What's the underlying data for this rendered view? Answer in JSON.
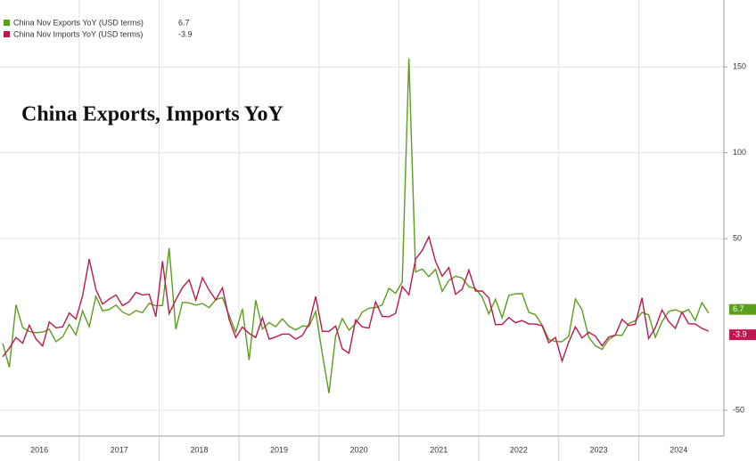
{
  "chart_data": {
    "type": "line",
    "title": "China Exports, Imports YoY",
    "categories": [
      null,
      null,
      null,
      null,
      null,
      "2016",
      null,
      null,
      null,
      null,
      null,
      null,
      null,
      null,
      null,
      null,
      null,
      "2017",
      null,
      null,
      null,
      null,
      null,
      null,
      null,
      null,
      null,
      null,
      null,
      "2018",
      null,
      null,
      null,
      null,
      null,
      null,
      null,
      null,
      null,
      null,
      null,
      "2019",
      null,
      null,
      null,
      null,
      null,
      null,
      null,
      null,
      null,
      null,
      null,
      "2020",
      null,
      null,
      null,
      null,
      null,
      null,
      null,
      null,
      null,
      null,
      null,
      "2021",
      null,
      null,
      null,
      null,
      null,
      null,
      null,
      null,
      null,
      null,
      null,
      "2022",
      null,
      null,
      null,
      null,
      null,
      null,
      null,
      null,
      null,
      null,
      null,
      "2023",
      null,
      null,
      null,
      null,
      null,
      null,
      null,
      null,
      null,
      null,
      null,
      "2024",
      null,
      null,
      null,
      null,
      null
    ],
    "series": [
      {
        "name": "China Nov Exports YoY (USD terms)",
        "color": "#5c9e1e",
        "values": [
          -11,
          -25,
          11.5,
          -1.8,
          -4.1,
          -4.8,
          -4.4,
          -2.8,
          -10,
          -7.3,
          0.1,
          -6.1,
          7.9,
          -1.3,
          16.4,
          8,
          8.7,
          11.3,
          7.2,
          5.5,
          8.1,
          6.9,
          12.3,
          10.9,
          11.1,
          44.5,
          -2.7,
          12.9,
          12.6,
          11.3,
          12.2,
          9.8,
          14.5,
          15.6,
          5.4,
          -4.4,
          9.1,
          -20.7,
          14.2,
          -2.7,
          1.1,
          -1.3,
          3.3,
          -1,
          -3.2,
          -0.9,
          -1.1,
          7.6,
          -17.2,
          -40,
          -6.6,
          3.5,
          -3.3,
          0.5,
          7.2,
          9.5,
          9.9,
          11.4,
          21.1,
          18.1,
          24.9,
          154.9,
          30.6,
          32.3,
          27.9,
          32.2,
          19.3,
          25.6,
          28.1,
          27.1,
          22,
          20.9,
          16,
          6.2,
          14.7,
          3.9,
          16.9,
          17.9,
          18,
          7.1,
          5.7,
          -0.3,
          -8.7,
          -9.9,
          -10,
          -6.8,
          14.8,
          8.5,
          -7.5,
          -12.4,
          -14.5,
          -8.8,
          -6.2,
          -6.4,
          0.5,
          2.3,
          7.1,
          5.6,
          -7.5,
          1.5,
          7.6,
          8.6,
          7,
          8.7,
          2.4,
          12.7,
          6.7
        ]
      },
      {
        "name": "China Nov Imports YoY (USD terms)",
        "color": "#c0174d",
        "values": [
          -18.8,
          -13.8,
          -7.6,
          -10.9,
          -0.4,
          -8.4,
          -12.5,
          1.5,
          -1.9,
          -1.4,
          6.7,
          3.1,
          16.7,
          38.1,
          20.3,
          11.9,
          14.8,
          17.2,
          11,
          13.3,
          18.7,
          17.2,
          17.7,
          4.5,
          36.9,
          6.3,
          14.4,
          21.5,
          26,
          14.1,
          27.3,
          20,
          14.3,
          21.4,
          3,
          -7.6,
          -1.5,
          -5.2,
          -7.6,
          4,
          -8.5,
          -7.3,
          -5.6,
          -5.6,
          -8.5,
          -6.4,
          0.3,
          16.3,
          -4,
          -4,
          -0.9,
          -14.2,
          -16.7,
          2.7,
          -1.4,
          -2.1,
          13.2,
          4.7,
          4.5,
          6.5,
          22.2,
          17.3,
          38.1,
          43.1,
          51.1,
          36.7,
          28.1,
          33.1,
          17.6,
          20.6,
          31.7,
          19.5,
          19.5,
          15.5,
          -0.1,
          0,
          4.1,
          1,
          2.3,
          0.3,
          0.3,
          -0.7,
          -10.6,
          -7.5,
          -21.3,
          -10.2,
          -1.4,
          -7.9,
          -4.5,
          -6.8,
          -12.4,
          -7.3,
          -6.2,
          3,
          -0.6,
          0.2,
          15.5,
          -8.2,
          -1.9,
          8.4,
          1.8,
          -2.3,
          7.2,
          0.5,
          0.3,
          -2.3,
          -3.9
        ]
      }
    ],
    "ylim": [
      -65,
      189
    ],
    "yticks": [
      -50,
      50,
      100,
      150
    ],
    "grid": true
  }
}
